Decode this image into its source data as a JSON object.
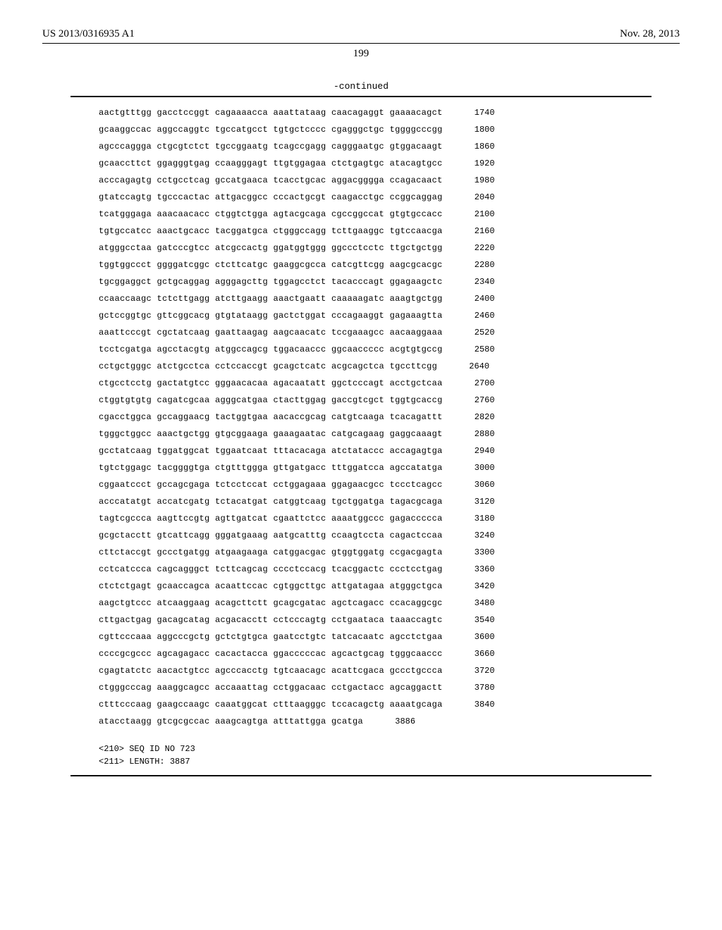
{
  "header": {
    "pub_number": "US 2013/0316935 A1",
    "pub_date": "Nov. 28, 2013"
  },
  "page_number": "199",
  "continued_label": "-continued",
  "sequence": {
    "lines": [
      {
        "groups": [
          "aactgtttgg",
          "gacctccggt",
          "cagaaaacca",
          "aaattataag",
          "caacagaggt",
          "gaaaacagct"
        ],
        "pos": "1740"
      },
      {
        "groups": [
          "gcaaggccac",
          "aggccaggtc",
          "tgccatgcct",
          "tgtgctcccc",
          "cgagggctgc",
          "tggggcccgg"
        ],
        "pos": "1800"
      },
      {
        "groups": [
          "agcccaggga",
          "ctgcgtctct",
          "tgccggaatg",
          "tcagccgagg",
          "cagggaatgc",
          "gtggacaagt"
        ],
        "pos": "1860"
      },
      {
        "groups": [
          "gcaaccttct",
          "ggagggtgag",
          "ccaagggagt",
          "ttgtggagaa",
          "ctctgagtgc",
          "atacagtgcc"
        ],
        "pos": "1920"
      },
      {
        "groups": [
          "acccagagtg",
          "cctgcctcag",
          "gccatgaaca",
          "tcacctgcac",
          "aggacgggga",
          "ccagacaact"
        ],
        "pos": "1980"
      },
      {
        "groups": [
          "gtatccagtg",
          "tgcccactac",
          "attgacggcc",
          "cccactgcgt",
          "caagacctgc",
          "ccggcaggag"
        ],
        "pos": "2040"
      },
      {
        "groups": [
          "tcatgggaga",
          "aaacaacacc",
          "ctggtctgga",
          "agtacgcaga",
          "cgccggccat",
          "gtgtgccacc"
        ],
        "pos": "2100"
      },
      {
        "groups": [
          "tgtgccatcc",
          "aaactgcacc",
          "tacggatgca",
          "ctgggccagg",
          "tcttgaaggc",
          "tgtccaacga"
        ],
        "pos": "2160"
      },
      {
        "groups": [
          "atgggcctaa",
          "gatcccgtcc",
          "atcgccactg",
          "ggatggtggg",
          "ggccctcctc",
          "ttgctgctgg"
        ],
        "pos": "2220"
      },
      {
        "groups": [
          "tggtggccct",
          "ggggatcggc",
          "ctcttcatgc",
          "gaaggcgcca",
          "catcgttcgg",
          "aagcgcacgc"
        ],
        "pos": "2280"
      },
      {
        "groups": [
          "tgcggaggct",
          "gctgcaggag",
          "agggagcttg",
          "tggagcctct",
          "tacacccagt",
          "ggagaagctc"
        ],
        "pos": "2340"
      },
      {
        "groups": [
          "ccaaccaagc",
          "tctcttgagg",
          "atcttgaagg",
          "aaactgaatt",
          "caaaaagatc",
          "aaagtgctgg"
        ],
        "pos": "2400"
      },
      {
        "groups": [
          "gctccggtgc",
          "gttcggcacg",
          "gtgtataagg",
          "gactctggat",
          "cccagaaggt",
          "gagaaagtta"
        ],
        "pos": "2460"
      },
      {
        "groups": [
          "aaattcccgt",
          "cgctatcaag",
          "gaattaagag",
          "aagcaacatc",
          "tccgaaagcc",
          "aacaaggaaa"
        ],
        "pos": "2520"
      },
      {
        "groups": [
          "tcctcgatga",
          "agcctacgtg",
          "atggccagcg",
          "tggacaaccc",
          "ggcaaccccc",
          "acgtgtgccg"
        ],
        "pos": "2580"
      },
      {
        "groups": [
          "cctgctgggc",
          "atctgcctca",
          "cctccaccgt",
          "gcagctcatc",
          "acgcagctca",
          "tgccttcgg"
        ],
        "pos": "2640"
      },
      {
        "groups": [
          "ctgcctcctg",
          "gactatgtcc",
          "gggaacacaa",
          "agacaatatt",
          "ggctcccagt",
          "acctgctcaa"
        ],
        "pos": "2700"
      },
      {
        "groups": [
          "ctggtgtgtg",
          "cagatcgcaa",
          "agggcatgaa",
          "ctacttggag",
          "gaccgtcgct",
          "tggtgcaccg"
        ],
        "pos": "2760"
      },
      {
        "groups": [
          "cgacctggca",
          "gccaggaacg",
          "tactggtgaa",
          "aacaccgcag",
          "catgtcaaga",
          "tcacagattt"
        ],
        "pos": "2820"
      },
      {
        "groups": [
          "tgggctggcc",
          "aaactgctgg",
          "gtgcggaaga",
          "gaaagaatac",
          "catgcagaag",
          "gaggcaaagt"
        ],
        "pos": "2880"
      },
      {
        "groups": [
          "gcctatcaag",
          "tggatggcat",
          "tggaatcaat",
          "tttacacaga",
          "atctataccc",
          "accagagtga"
        ],
        "pos": "2940"
      },
      {
        "groups": [
          "tgtctggagc",
          "tacggggtga",
          "ctgtttggga",
          "gttgatgacc",
          "tttggatcca",
          "agccatatga"
        ],
        "pos": "3000"
      },
      {
        "groups": [
          "cggaatccct",
          "gccagcgaga",
          "tctcctccat",
          "cctggagaaa",
          "ggagaacgcc",
          "tccctcagcc"
        ],
        "pos": "3060"
      },
      {
        "groups": [
          "acccatatgt",
          "accatcgatg",
          "tctacatgat",
          "catggtcaag",
          "tgctggatga",
          "tagacgcaga"
        ],
        "pos": "3120"
      },
      {
        "groups": [
          "tagtcgccca",
          "aagttccgtg",
          "agttgatcat",
          "cgaattctcc",
          "aaaatggccc",
          "gagaccccca"
        ],
        "pos": "3180"
      },
      {
        "groups": [
          "gcgctacctt",
          "gtcattcagg",
          "gggatgaaag",
          "aatgcatttg",
          "ccaagtccta",
          "cagactccaa"
        ],
        "pos": "3240"
      },
      {
        "groups": [
          "cttctaccgt",
          "gccctgatgg",
          "atgaagaaga",
          "catggacgac",
          "gtggtggatg",
          "ccgacgagta"
        ],
        "pos": "3300"
      },
      {
        "groups": [
          "cctcatccca",
          "cagcagggct",
          "tcttcagcag",
          "cccctccacg",
          "tcacggactc",
          "ccctcctgag"
        ],
        "pos": "3360"
      },
      {
        "groups": [
          "ctctctgagt",
          "gcaaccagca",
          "acaattccac",
          "cgtggcttgc",
          "attgatagaa",
          "atgggctgca"
        ],
        "pos": "3420"
      },
      {
        "groups": [
          "aagctgtccc",
          "atcaaggaag",
          "acagcttctt",
          "gcagcgatac",
          "agctcagacc",
          "ccacaggcgc"
        ],
        "pos": "3480"
      },
      {
        "groups": [
          "cttgactgag",
          "gacagcatag",
          "acgacacctt",
          "cctcccagtg",
          "cctgaataca",
          "taaaccagtc"
        ],
        "pos": "3540"
      },
      {
        "groups": [
          "cgttcccaaa",
          "aggcccgctg",
          "gctctgtgca",
          "gaatcctgtc",
          "tatcacaatc",
          "agcctctgaa"
        ],
        "pos": "3600"
      },
      {
        "groups": [
          "ccccgcgccc",
          "agcagagacc",
          "cacactacca",
          "ggacccccac",
          "agcactgcag",
          "tgggcaaccc"
        ],
        "pos": "3660"
      },
      {
        "groups": [
          "cgagtatctc",
          "aacactgtcc",
          "agcccacctg",
          "tgtcaacagc",
          "acattcgaca",
          "gccctgccca"
        ],
        "pos": "3720"
      },
      {
        "groups": [
          "ctgggcccag",
          "aaaggcagcc",
          "accaaattag",
          "cctggacaac",
          "cctgactacc",
          "agcaggactt"
        ],
        "pos": "3780"
      },
      {
        "groups": [
          "ctttcccaag",
          "gaagccaagc",
          "caaatggcat",
          "ctttaagggc",
          "tccacagctg",
          "aaaatgcaga"
        ],
        "pos": "3840"
      },
      {
        "groups": [
          "atacctaagg",
          "gtcgcgccac",
          "aaagcagtga",
          "atttattgga",
          "gcatga",
          ""
        ],
        "pos": "3886"
      }
    ]
  },
  "seq_meta": {
    "line1": "<210> SEQ ID NO 723",
    "line2": "<211> LENGTH: 3887"
  }
}
